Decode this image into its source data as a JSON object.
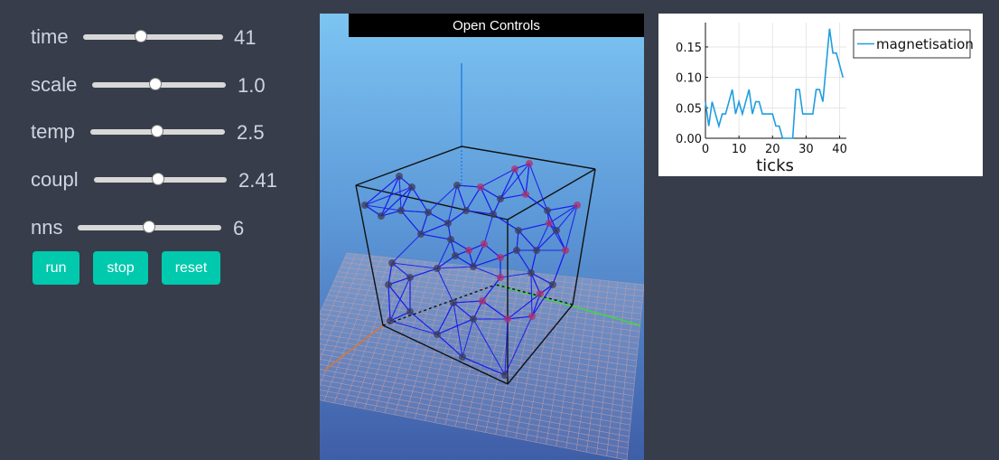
{
  "sliders": [
    {
      "label": "time",
      "value": "41",
      "fraction": 0.42
    },
    {
      "label": "scale",
      "value": "1.0",
      "fraction": 0.48
    },
    {
      "label": "temp",
      "value": "2.5",
      "fraction": 0.5
    },
    {
      "label": "coupl",
      "value": "2.41",
      "fraction": 0.49
    },
    {
      "label": "nns",
      "value": "6",
      "fraction": 0.5
    }
  ],
  "buttons": {
    "run_label": "run",
    "stop_label": "stop",
    "reset_label": "reset"
  },
  "scene": {
    "open_controls_label": "Open Controls"
  },
  "colors": {
    "background": "#373d4a",
    "button": "#00c9ad",
    "series": "#1f9de0"
  },
  "chart_data": {
    "type": "line",
    "xlabel": "ticks",
    "ylabel": "",
    "xlim": [
      0,
      42
    ],
    "ylim": [
      0,
      0.19
    ],
    "xticks": [
      0,
      10,
      20,
      30,
      40
    ],
    "yticks": [
      0.0,
      0.05,
      0.1,
      0.15
    ],
    "ytick_labels": [
      "0.00",
      "0.05",
      "0.10",
      "0.15"
    ],
    "grid": true,
    "legend_position": "top-right",
    "series": [
      {
        "name": "magnetisation",
        "x": [
          0,
          1,
          2,
          3,
          4,
          5,
          6,
          7,
          8,
          9,
          10,
          11,
          12,
          13,
          14,
          15,
          16,
          17,
          18,
          19,
          20,
          21,
          22,
          23,
          24,
          25,
          26,
          27,
          28,
          29,
          30,
          31,
          32,
          33,
          34,
          35,
          36,
          37,
          38,
          39,
          40,
          41
        ],
        "values": [
          0.06,
          0.02,
          0.06,
          0.04,
          0.02,
          0.04,
          0.04,
          0.06,
          0.08,
          0.04,
          0.06,
          0.04,
          0.06,
          0.08,
          0.04,
          0.06,
          0.06,
          0.04,
          0.04,
          0.04,
          0.04,
          0.02,
          0.02,
          0.0,
          0.0,
          0.0,
          0.0,
          0.08,
          0.08,
          0.04,
          0.04,
          0.04,
          0.04,
          0.08,
          0.08,
          0.06,
          0.12,
          0.18,
          0.14,
          0.14,
          0.12,
          0.1
        ]
      }
    ]
  }
}
